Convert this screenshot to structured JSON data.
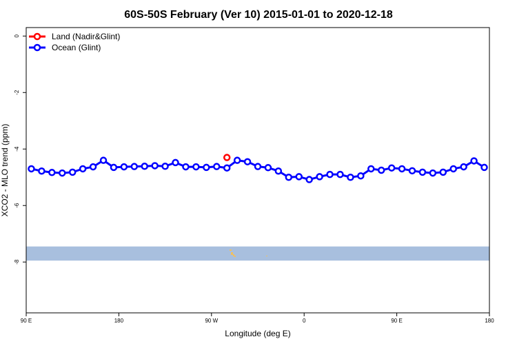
{
  "chart_data": {
    "type": "line",
    "title": "60S-50S February (Ver 10)   2015-01-01 to 2020-12-18",
    "xlabel": "Longitude (deg E)",
    "ylabel": "XCO2 - MLO trend (ppm)",
    "xlim": [
      90,
      540
    ],
    "ylim": [
      -9.8,
      0.3
    ],
    "x_ticks": [
      {
        "value": 90,
        "label": "90 E"
      },
      {
        "value": 180,
        "label": "180"
      },
      {
        "value": 270,
        "label": "90 W"
      },
      {
        "value": 360,
        "label": "0"
      },
      {
        "value": 450,
        "label": "90 E"
      },
      {
        "value": 540,
        "label": "180"
      }
    ],
    "y_ticks": [
      {
        "value": 0,
        "label": "0"
      },
      {
        "value": -2,
        "label": "-2"
      },
      {
        "value": -4,
        "label": "-4"
      },
      {
        "value": -6,
        "label": "-6"
      },
      {
        "value": -8,
        "label": "-8"
      }
    ],
    "grid": false,
    "legend_position": "top-left",
    "series": [
      {
        "name": "Land (Nadir&Glint)",
        "color": "#ff0000",
        "x": [
          285
        ],
        "y": [
          -4.3
        ]
      },
      {
        "name": "Ocean (Glint)",
        "color": "#0000ff",
        "x": [
          95,
          105,
          115,
          125,
          135,
          145,
          155,
          165,
          175,
          185,
          195,
          205,
          215,
          225,
          235,
          245,
          255,
          265,
          275,
          285,
          295,
          305,
          315,
          325,
          335,
          345,
          355,
          365,
          375,
          385,
          395,
          405,
          415,
          425,
          435,
          445,
          455,
          465,
          475,
          485,
          495,
          505,
          515,
          525,
          535
        ],
        "y": [
          -4.7,
          -4.78,
          -4.83,
          -4.85,
          -4.82,
          -4.7,
          -4.63,
          -4.4,
          -4.65,
          -4.63,
          -4.62,
          -4.61,
          -4.59,
          -4.61,
          -4.48,
          -4.63,
          -4.63,
          -4.65,
          -4.62,
          -4.67,
          -4.4,
          -4.45,
          -4.62,
          -4.66,
          -4.78,
          -5.0,
          -4.98,
          -5.08,
          -4.98,
          -4.9,
          -4.9,
          -5.0,
          -4.95,
          -4.7,
          -4.75,
          -4.67,
          -4.7,
          -4.77,
          -4.82,
          -4.85,
          -4.82,
          -4.7,
          -4.63,
          -4.42,
          -4.65
        ]
      }
    ],
    "map_band": {
      "y_range": [
        -7.95,
        -7.45
      ],
      "color": "#a8bfde",
      "land_color": "#f0c060"
    }
  }
}
